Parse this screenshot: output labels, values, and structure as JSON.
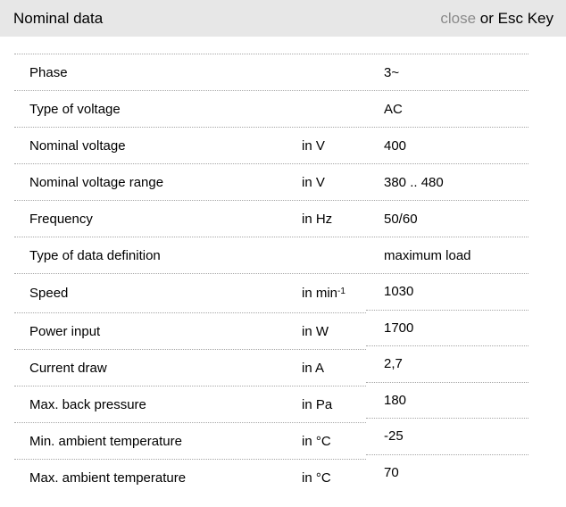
{
  "header": {
    "title": "Nominal data",
    "close_label": "close",
    "close_suffix": " or Esc Key"
  },
  "table": {
    "upper_rows": [
      {
        "label": "Phase",
        "unit": "",
        "value": "3~"
      },
      {
        "label": "Type of voltage",
        "unit": "",
        "value": "AC"
      },
      {
        "label": "Nominal voltage",
        "unit": "in V",
        "value": "400"
      },
      {
        "label": "Nominal voltage range",
        "unit": "in V",
        "value": "380 .. 480"
      },
      {
        "label": "Frequency",
        "unit": "in Hz",
        "value": "50/60"
      },
      {
        "label": "Type of data definition",
        "unit": "",
        "value": "maximum load"
      }
    ],
    "lower_rows": [
      {
        "label": "Speed",
        "unit": "in min",
        "unit_sup": "-1",
        "value": "1030"
      },
      {
        "label": "Power input",
        "unit": "in W",
        "value": "1700"
      },
      {
        "label": "Current draw",
        "unit": "in A",
        "value": "2,7"
      },
      {
        "label": "Max. back pressure",
        "unit": "in Pa",
        "value": "180"
      },
      {
        "label": "Min. ambient temperature",
        "unit": "in °C",
        "value": "-25"
      },
      {
        "label": "Max. ambient temperature",
        "unit": "in °C",
        "value": "70"
      }
    ]
  },
  "colors": {
    "header_bg": "#e7e7e7",
    "close_link": "#8b8b8b",
    "divider_dotted": "#a6a6a6",
    "text": "#000000"
  }
}
